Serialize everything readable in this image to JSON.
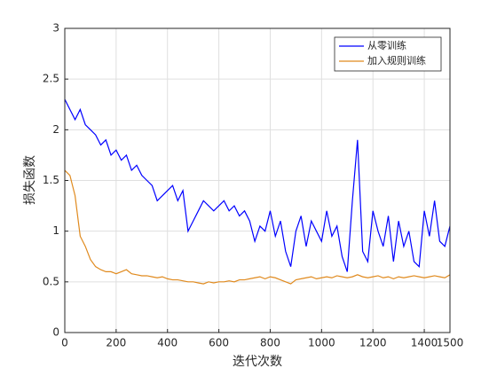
{
  "chart_data": {
    "type": "line",
    "x_label": "迭代次数",
    "y_label": "损失函数",
    "x": [
      0,
      20,
      40,
      60,
      80,
      100,
      120,
      140,
      160,
      180,
      200,
      220,
      240,
      260,
      280,
      300,
      320,
      340,
      360,
      380,
      400,
      420,
      440,
      460,
      480,
      500,
      520,
      540,
      560,
      580,
      600,
      620,
      640,
      660,
      680,
      700,
      720,
      740,
      760,
      780,
      800,
      820,
      840,
      860,
      880,
      900,
      920,
      940,
      960,
      980,
      1000,
      1020,
      1040,
      1060,
      1080,
      1100,
      1120,
      1140,
      1160,
      1180,
      1200,
      1220,
      1240,
      1260,
      1280,
      1300,
      1320,
      1340,
      1360,
      1380,
      1400,
      1420,
      1440,
      1460,
      1480,
      1500
    ],
    "series": [
      {
        "name": "从零训练",
        "color": "#0000ff",
        "values": [
          2.3,
          2.2,
          2.1,
          2.2,
          2.05,
          2.0,
          1.95,
          1.85,
          1.9,
          1.75,
          1.8,
          1.7,
          1.75,
          1.6,
          1.65,
          1.55,
          1.5,
          1.45,
          1.3,
          1.35,
          1.4,
          1.45,
          1.3,
          1.4,
          1.0,
          1.1,
          1.2,
          1.3,
          1.25,
          1.2,
          1.25,
          1.3,
          1.2,
          1.25,
          1.15,
          1.2,
          1.1,
          0.9,
          1.05,
          1.0,
          1.2,
          0.95,
          1.1,
          0.8,
          0.65,
          1.0,
          1.15,
          0.85,
          1.1,
          1.0,
          0.9,
          1.2,
          0.95,
          1.05,
          0.75,
          0.6,
          1.3,
          1.9,
          0.8,
          0.7,
          1.2,
          1.0,
          0.85,
          1.15,
          0.7,
          1.1,
          0.85,
          1.0,
          0.7,
          0.65,
          1.2,
          0.95,
          1.3,
          0.9,
          0.85,
          1.05
        ]
      },
      {
        "name": "加入规则训练",
        "color": "#e08a1e",
        "values": [
          1.6,
          1.55,
          1.35,
          0.95,
          0.85,
          0.72,
          0.65,
          0.62,
          0.6,
          0.6,
          0.58,
          0.6,
          0.62,
          0.58,
          0.57,
          0.56,
          0.56,
          0.55,
          0.54,
          0.55,
          0.53,
          0.52,
          0.52,
          0.51,
          0.5,
          0.5,
          0.49,
          0.48,
          0.5,
          0.49,
          0.5,
          0.5,
          0.51,
          0.5,
          0.52,
          0.52,
          0.53,
          0.54,
          0.55,
          0.53,
          0.55,
          0.54,
          0.52,
          0.5,
          0.48,
          0.52,
          0.53,
          0.54,
          0.55,
          0.53,
          0.54,
          0.55,
          0.54,
          0.56,
          0.55,
          0.54,
          0.55,
          0.57,
          0.55,
          0.54,
          0.55,
          0.56,
          0.54,
          0.55,
          0.53,
          0.55,
          0.54,
          0.55,
          0.56,
          0.55,
          0.54,
          0.55,
          0.56,
          0.55,
          0.54,
          0.57
        ]
      }
    ],
    "xlim": [
      0,
      1500
    ],
    "xticks": [
      0,
      200,
      400,
      600,
      800,
      1000,
      1200,
      1400,
      1500
    ],
    "ylim": [
      0,
      3
    ],
    "yticks": [
      0,
      0.5,
      1,
      1.5,
      2,
      2.5,
      3
    ],
    "grid": true,
    "legend": "top-right"
  }
}
